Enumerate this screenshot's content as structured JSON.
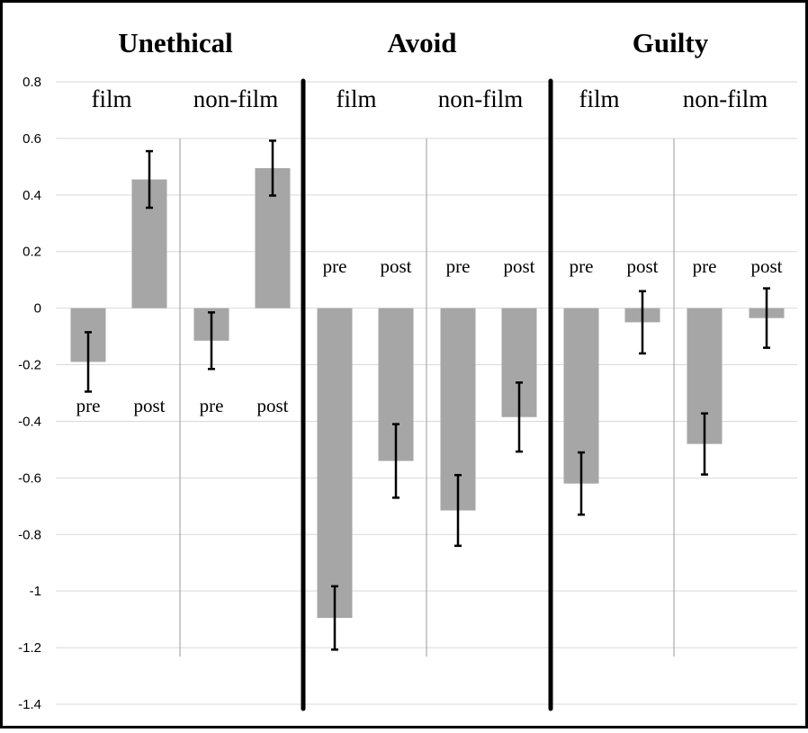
{
  "chart_data": {
    "type": "bar",
    "y_ticks": [
      "0.8",
      "0.6",
      "0.4",
      "0.2",
      "0",
      "-0.2",
      "-0.4",
      "-0.6",
      "-0.8",
      "-1",
      "-1.2",
      "-1.4"
    ],
    "ylim": [
      -1.4,
      0.8
    ],
    "grid": true,
    "panels": [
      {
        "title": "Unethical",
        "groups": [
          {
            "label": "film",
            "bars": [
              {
                "label": "pre",
                "value": -0.19,
                "error": 0.105
              },
              {
                "label": "post",
                "value": 0.455,
                "error": 0.1
              }
            ]
          },
          {
            "label": "non-film",
            "bars": [
              {
                "label": "pre",
                "value": -0.115,
                "error": 0.1
              },
              {
                "label": "post",
                "value": 0.495,
                "error": 0.097
              }
            ]
          }
        ]
      },
      {
        "title": "Avoid",
        "groups": [
          {
            "label": "film",
            "bars": [
              {
                "label": "pre",
                "value": -1.095,
                "error": 0.112
              },
              {
                "label": "post",
                "value": -0.54,
                "error": 0.13
              }
            ]
          },
          {
            "label": "non-film",
            "bars": [
              {
                "label": "pre",
                "value": -0.715,
                "error": 0.125
              },
              {
                "label": "post",
                "value": -0.385,
                "error": 0.122
              }
            ]
          }
        ]
      },
      {
        "title": "Guilty",
        "groups": [
          {
            "label": "film",
            "bars": [
              {
                "label": "pre",
                "value": -0.62,
                "error": 0.11
              },
              {
                "label": "post",
                "value": -0.05,
                "error": 0.11
              }
            ]
          },
          {
            "label": "non-film",
            "bars": [
              {
                "label": "pre",
                "value": -0.48,
                "error": 0.108
              },
              {
                "label": "post",
                "value": -0.035,
                "error": 0.105
              }
            ]
          }
        ]
      }
    ],
    "colors": {
      "bar": "#a6a6a6",
      "grid": "#d9d9d9",
      "error_bar": "#000000",
      "divider": "#000000",
      "subgroup_divider": "#9a9a9a"
    }
  }
}
